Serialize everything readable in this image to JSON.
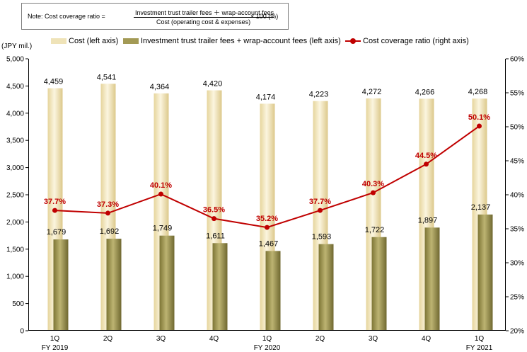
{
  "note": {
    "prefix": "Note:  Cost coverage ratio =",
    "numerator": "Investment trust trailer fees ＋ wrap-account fees",
    "denominator": "Cost (operating cost & expenses)",
    "suffix": "× 100 (%)"
  },
  "colors": {
    "cost": "#efe3b8",
    "fees": "#a39a55",
    "ratio": "#c00000"
  },
  "chart_data": {
    "type": "bar",
    "ylabel": "(JPY mil.)",
    "ylim": [
      0,
      5000
    ],
    "y_ticks": [
      "0",
      "500",
      "1,000",
      "1,500",
      "2,000",
      "2,500",
      "3,000",
      "3,500",
      "4,000",
      "4,500",
      "5,000"
    ],
    "y2lim": [
      20,
      60
    ],
    "y2_ticks": [
      "20%",
      "25%",
      "30%",
      "35%",
      "40%",
      "45%",
      "50%",
      "55%",
      "60%"
    ],
    "categories": [
      "1Q",
      "2Q",
      "3Q",
      "4Q",
      "1Q",
      "2Q",
      "3Q",
      "4Q",
      "1Q"
    ],
    "fiscal_years": [
      "FY 2019",
      "",
      "",
      "",
      "FY 2020",
      "",
      "",
      "",
      "FY 2021"
    ],
    "legend_position": "top",
    "grid": false,
    "series": [
      {
        "name": "Cost (left axis)",
        "type": "bar",
        "axis": "left",
        "values": [
          4459,
          4541,
          4364,
          4420,
          4174,
          4223,
          4272,
          4266,
          4268
        ],
        "labels": [
          "4,459",
          "4,541",
          "4,364",
          "4,420",
          "4,174",
          "4,223",
          "4,272",
          "4,266",
          "4,268"
        ]
      },
      {
        "name": "Investment trust trailer fees + wrap-account fees (left axis)",
        "type": "bar",
        "axis": "left",
        "values": [
          1679,
          1692,
          1749,
          1611,
          1467,
          1593,
          1722,
          1897,
          2137
        ],
        "labels": [
          "1,679",
          "1,692",
          "1,749",
          "1,611",
          "1,467",
          "1,593",
          "1,722",
          "1,897",
          "2,137"
        ]
      },
      {
        "name": "Cost coverage ratio (right axis)",
        "type": "line",
        "axis": "right",
        "values": [
          37.7,
          37.3,
          40.1,
          36.5,
          35.2,
          37.7,
          40.3,
          44.5,
          50.1
        ],
        "labels": [
          "37.7%",
          "37.3%",
          "40.1%",
          "36.5%",
          "35.2%",
          "37.7%",
          "40.3%",
          "44.5%",
          "50.1%"
        ]
      }
    ]
  }
}
